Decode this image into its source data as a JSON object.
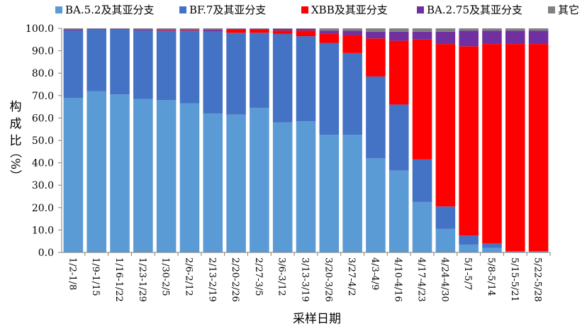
{
  "chart_data": {
    "type": "bar",
    "stacked": true,
    "title": "",
    "xlabel": "采样日期",
    "ylabel_chars": [
      "构",
      "成",
      "比",
      "（%）"
    ],
    "ylim": [
      0,
      100
    ],
    "yticks": [
      "0.0",
      "10.0",
      "20.0",
      "30.0",
      "40.0",
      "50.0",
      "60.0",
      "70.0",
      "80.0",
      "90.0",
      "100.0"
    ],
    "legend_position": "top",
    "grid": false,
    "categories": [
      "1/2-1/8",
      "1/9-1/15",
      "1/16-1/22",
      "1/23-1/29",
      "1/30-2/5",
      "2/6-2/12",
      "2/13-2/19",
      "2/20-2/26",
      "2/27-3/5",
      "3/6-3/12",
      "3/13-3/19",
      "3/20-3/26",
      "3/27-4/2",
      "4/3-4/9",
      "4/10-4/16",
      "4/17-4/23",
      "4/24-4/30",
      "5/1-5/7",
      "5/8-5/14",
      "5/15-5/21",
      "5/22-5/28"
    ],
    "series": [
      {
        "name": "BA.5.2及其亚分支",
        "color": "#5B9BD5",
        "values": [
          69,
          72,
          70.5,
          68.5,
          68,
          66.5,
          62,
          61.5,
          64.5,
          58,
          58.5,
          52.5,
          52.5,
          42,
          36.5,
          22.5,
          10.5,
          3.5,
          2,
          0.5,
          0.5
        ]
      },
      {
        "name": "BF.7及其亚分支",
        "color": "#4472C4",
        "values": [
          30,
          27.5,
          29,
          30.5,
          30.8,
          32.3,
          36.5,
          36.5,
          33.5,
          39.5,
          38,
          41,
          36.5,
          36.5,
          29.5,
          19,
          10,
          4,
          2,
          0,
          0
        ]
      },
      {
        "name": "XBB及其亚分支",
        "color": "#FF0000",
        "values": [
          0,
          0,
          0,
          0,
          0.2,
          0.2,
          0.3,
          1.5,
          1.5,
          1.5,
          2.5,
          4,
          8,
          17,
          28.5,
          53.5,
          72.5,
          84.5,
          89,
          92.5,
          92.5
        ]
      },
      {
        "name": "BA.2.75及其亚分支",
        "color": "#7030A0",
        "values": [
          0.5,
          0.3,
          0.3,
          0.5,
          0.5,
          0.5,
          0.7,
          0.3,
          0.3,
          0.8,
          0.8,
          1.5,
          2,
          3,
          4,
          3.5,
          5.5,
          7,
          6,
          6,
          6
        ]
      },
      {
        "name": "其它",
        "color": "#808080",
        "values": [
          0.5,
          0.2,
          0.2,
          0.5,
          0.5,
          0.5,
          0.5,
          0.2,
          0.2,
          0.2,
          0.2,
          1,
          1,
          1.5,
          1.5,
          1.5,
          1.5,
          1,
          1,
          1,
          1
        ]
      }
    ]
  }
}
